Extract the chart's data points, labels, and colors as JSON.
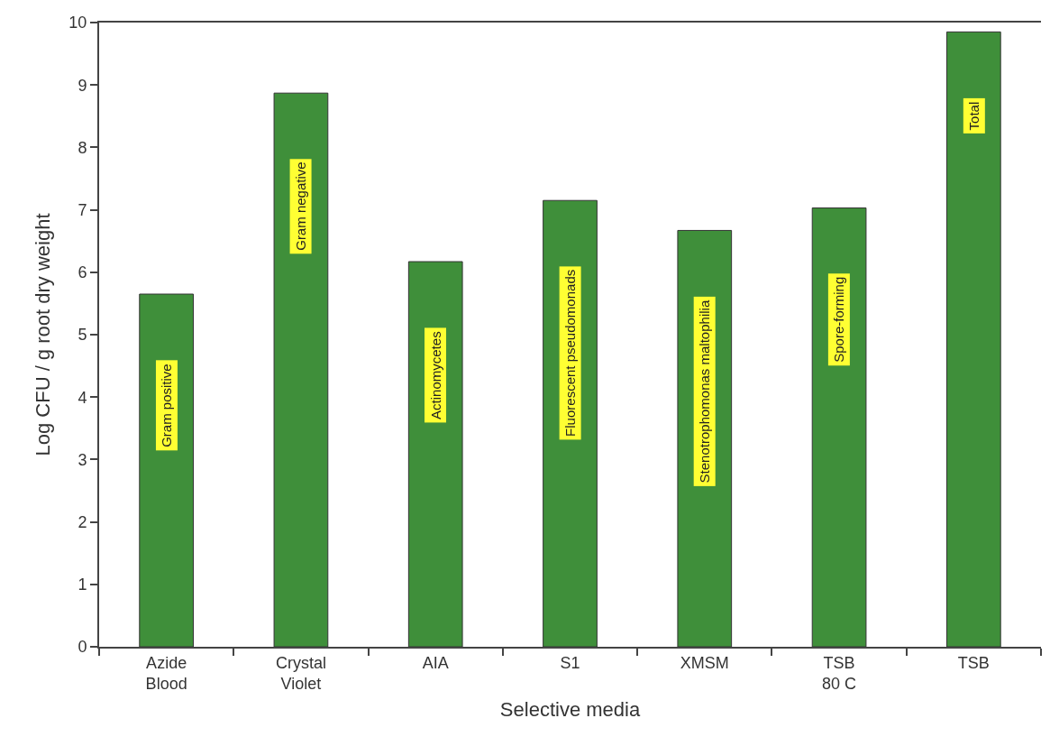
{
  "chart_data": {
    "type": "bar",
    "xlabel": "Selective media",
    "ylabel": "Log CFU / g root dry weight",
    "categories": [
      "Azide Blood",
      "Crystal Violet",
      "AIA",
      "S1",
      "XMSM",
      "TSB 80 C",
      "TSB"
    ],
    "values": [
      5.65,
      8.87,
      6.17,
      7.15,
      6.67,
      7.03,
      9.85
    ],
    "color": "#3f8f3a",
    "ylim": [
      0,
      10
    ],
    "yticks": [
      0,
      1,
      2,
      3,
      4,
      5,
      6,
      7,
      8,
      9,
      10
    ],
    "grid": false,
    "annotations": [
      "Gram positive",
      "Gram negative",
      "Actinomycetes",
      "Fluorescent pseudomonads",
      "Stenotrophomonas maltophilia",
      "Spore-forming",
      "Total"
    ]
  }
}
